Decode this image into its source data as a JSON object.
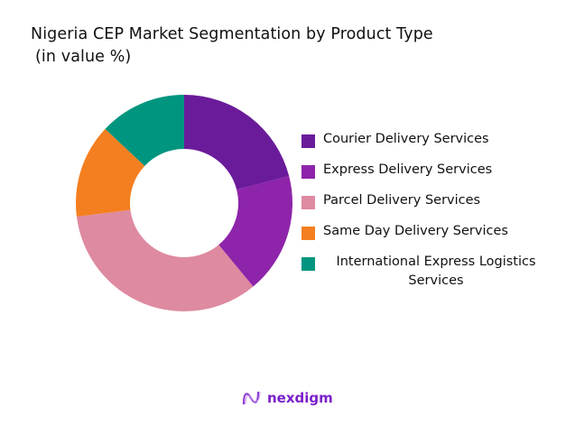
{
  "chart_data": {
    "type": "pie",
    "variant": "donut",
    "title": "Nigeria CEP Market Segmentation by Product Type",
    "subtitle": "(in value %)",
    "legend_position": "right",
    "categories": [
      "Courier Delivery Services",
      "Express Delivery Services",
      "Parcel Delivery Services",
      "Same Day Delivery Services",
      "International Express Logistics Services"
    ],
    "values": [
      21,
      18,
      34,
      14,
      13
    ],
    "colors": [
      "#6a1b9a",
      "#8e24aa",
      "#de8aa0",
      "#f47f20",
      "#00957f"
    ]
  },
  "brand": {
    "name": "nexdigm",
    "color": "#7a1fc9"
  }
}
